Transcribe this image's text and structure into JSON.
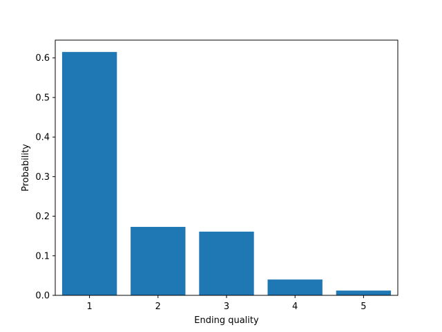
{
  "chart_data": {
    "type": "bar",
    "title": "",
    "xlabel": "Ending quality",
    "ylabel": "Probability",
    "categories": [
      "1",
      "2",
      "3",
      "4",
      "5"
    ],
    "values": [
      0.615,
      0.173,
      0.161,
      0.04,
      0.012
    ],
    "ylim": [
      0.0,
      0.645
    ],
    "yticks": [
      "0.0",
      "0.1",
      "0.2",
      "0.3",
      "0.4",
      "0.5",
      "0.6"
    ],
    "grid": false,
    "legend": "none",
    "bar_color": "#1f77b4"
  }
}
